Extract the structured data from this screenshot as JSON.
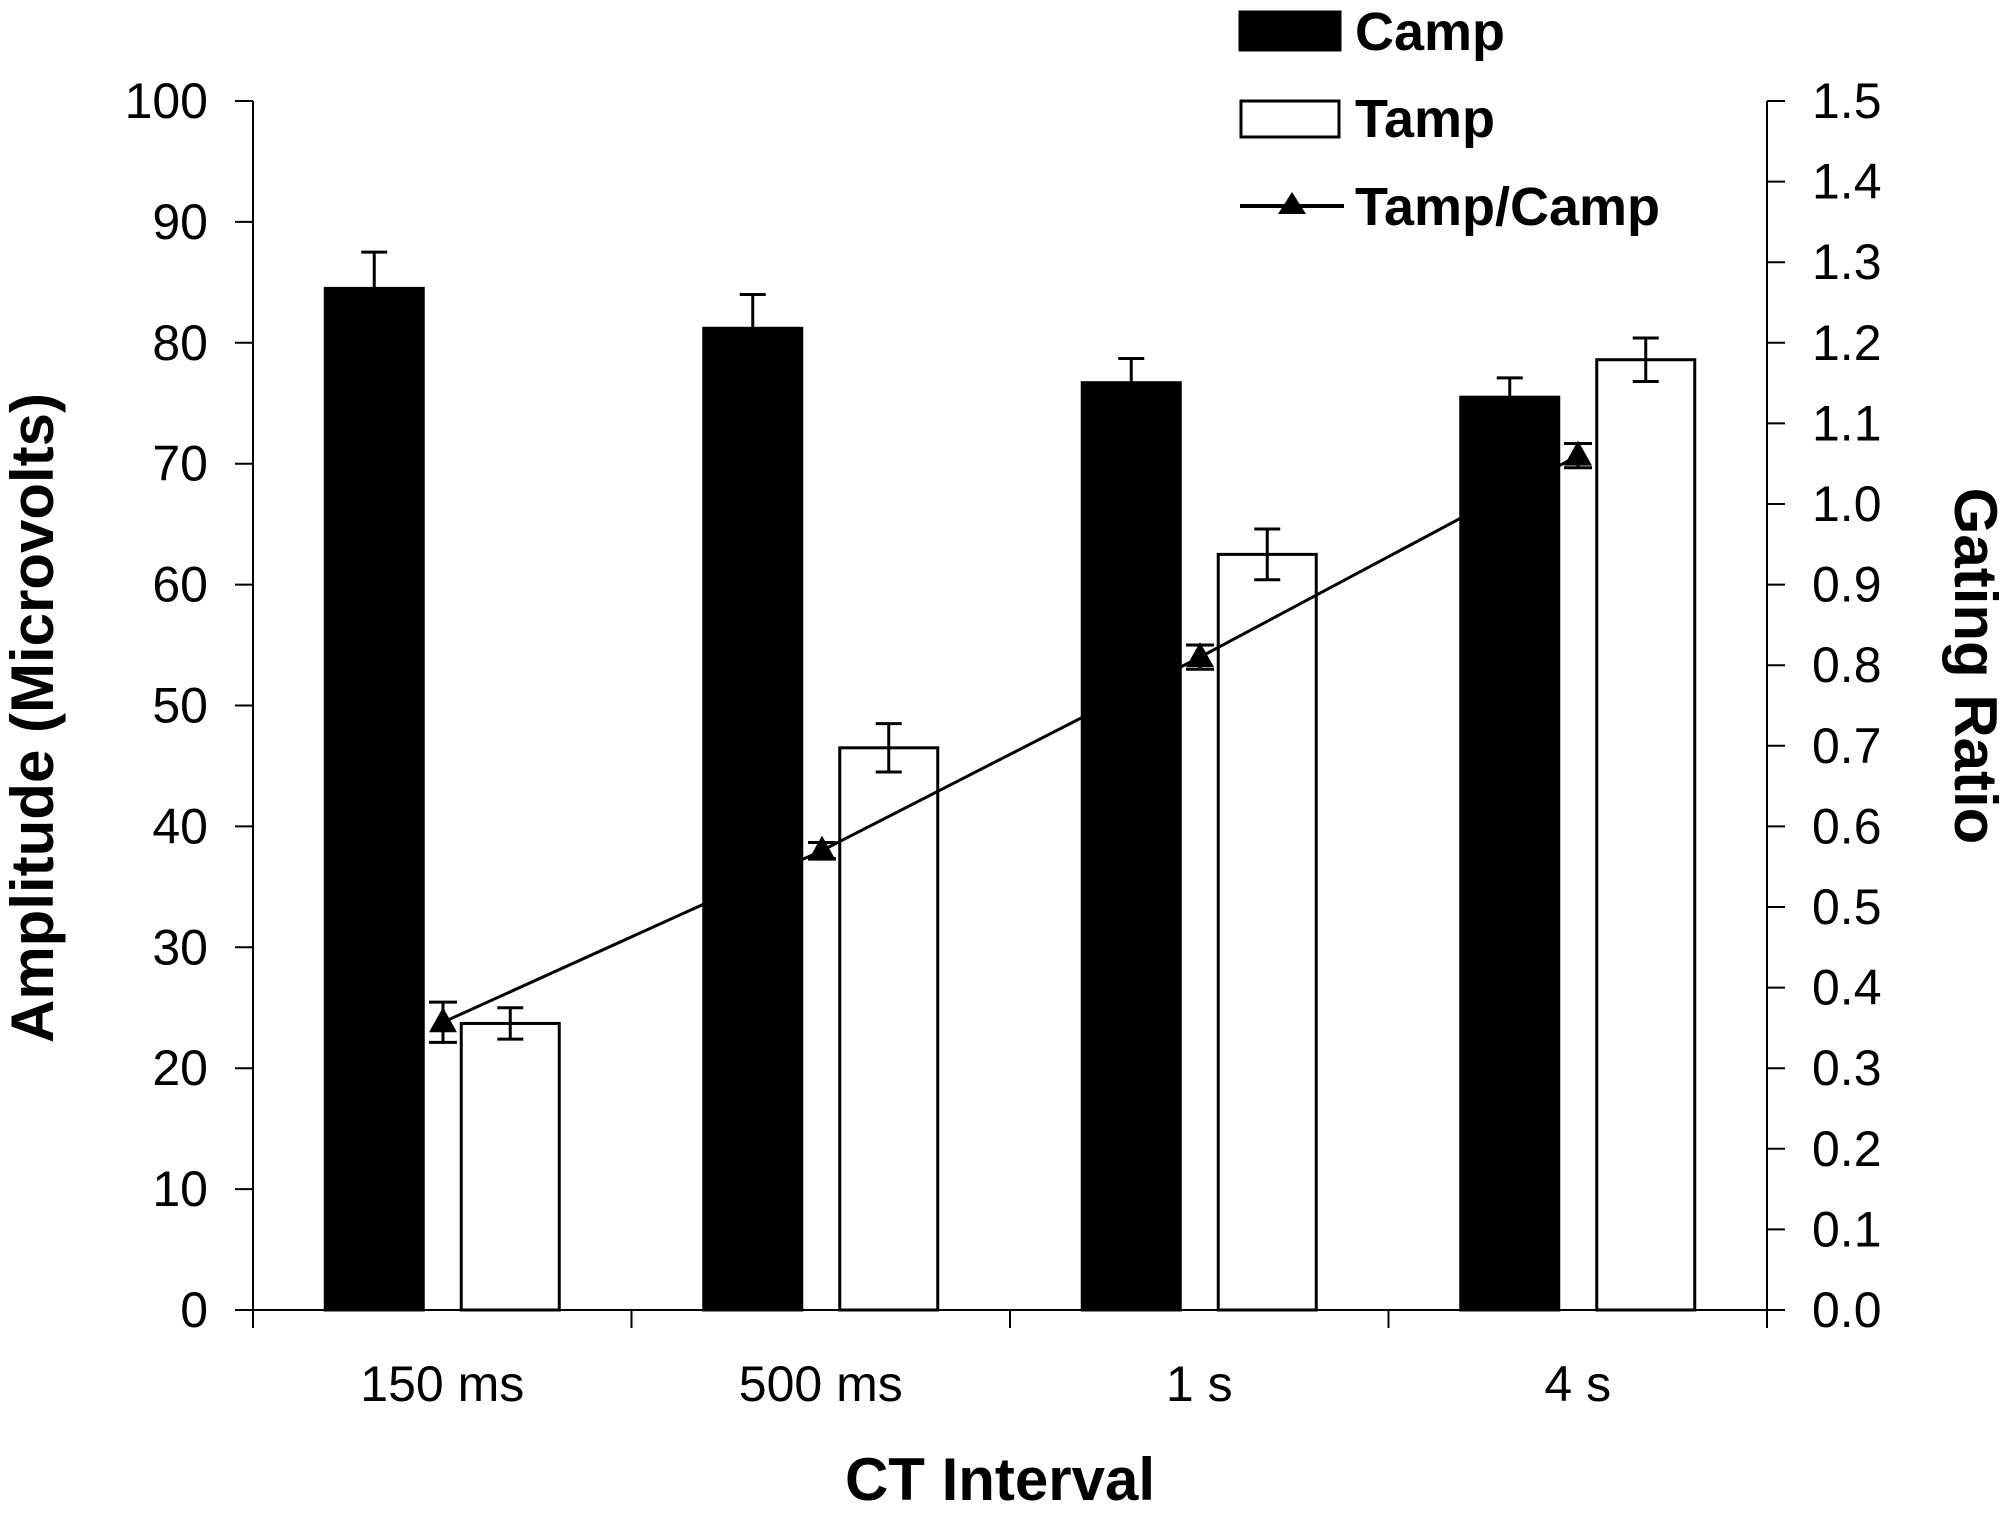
{
  "chart_data": {
    "type": "bar",
    "categories": [
      "150 ms",
      "500 ms",
      "1 s",
      "4 s"
    ],
    "xlabel": "CT Interval",
    "ylabel": "Amplitude (Microvolts)",
    "y2label": "Gating Ratio",
    "ylim": [
      0,
      100
    ],
    "y_ticks": [
      "0",
      "10",
      "20",
      "30",
      "40",
      "50",
      "60",
      "70",
      "80",
      "90",
      "100"
    ],
    "y2lim": [
      0.0,
      1.5
    ],
    "y2_ticks": [
      "0.0",
      "0.1",
      "0.2",
      "0.3",
      "0.4",
      "0.5",
      "0.6",
      "0.7",
      "0.8",
      "0.9",
      "1.0",
      "1.1",
      "1.2",
      "1.3",
      "1.4",
      "1.5"
    ],
    "grid": false,
    "legend_position": "top-right",
    "series": [
      {
        "name": "Camp",
        "type": "bar",
        "axis": "left",
        "fill": "#000000",
        "values": [
          84.5,
          81.2,
          76.7,
          75.5
        ],
        "errors": [
          3.0,
          2.8,
          2.0,
          1.6
        ]
      },
      {
        "name": "Tamp",
        "type": "bar",
        "axis": "left",
        "fill": "#ffffff",
        "values": [
          23.7,
          46.5,
          62.5,
          78.6
        ],
        "errors": [
          1.3,
          2.0,
          2.1,
          1.8
        ]
      },
      {
        "name": "Tamp/Camp",
        "type": "line",
        "axis": "right",
        "marker": "triangle",
        "values": [
          0.357,
          0.57,
          0.81,
          1.06
        ],
        "errors": [
          0.025,
          0.01,
          0.015,
          0.015
        ]
      }
    ]
  }
}
